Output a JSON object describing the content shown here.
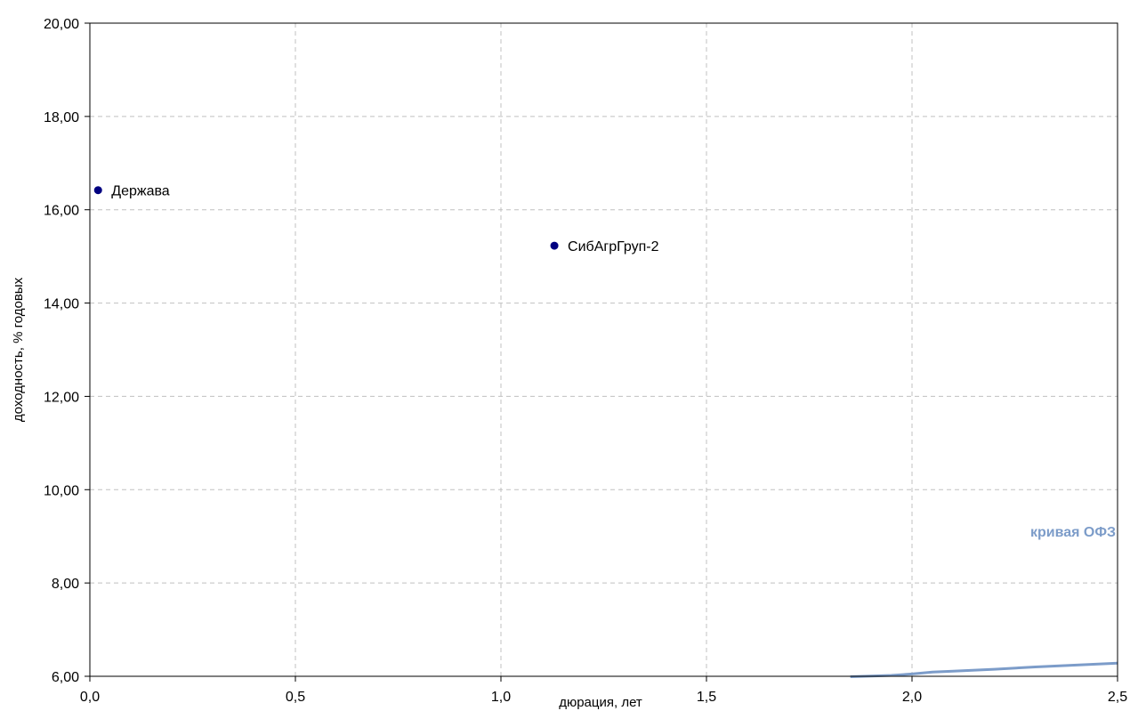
{
  "chart_data": {
    "type": "scatter",
    "xlabel": "дюрация, лет",
    "ylabel": "доходность, % годовых",
    "xlim": [
      0,
      2.5
    ],
    "ylim": [
      6,
      20
    ],
    "x_ticks": [
      "0,0",
      "0,5",
      "1,0",
      "1,5",
      "2,0",
      "2,5"
    ],
    "y_ticks": [
      "6,00",
      "8,00",
      "10,00",
      "12,00",
      "14,00",
      "16,00",
      "18,00",
      "20,00"
    ],
    "grid": true,
    "points": [
      {
        "label": "Держава",
        "x": 0.02,
        "y": 16.42
      },
      {
        "label": "СибАгрГруп-2",
        "x": 1.13,
        "y": 15.23
      }
    ],
    "curve": {
      "label": "кривая ОФЗ",
      "x": [
        1.85,
        1.95,
        2.0,
        2.05,
        2.1,
        2.2,
        2.3,
        2.4,
        2.5
      ],
      "y": [
        5.99,
        6.02,
        6.05,
        6.09,
        6.11,
        6.15,
        6.2,
        6.24,
        6.28
      ]
    },
    "colors": {
      "points": "#000080",
      "curve": "#7c9cc9",
      "grid": "#c0c0c0",
      "axis": "#000000"
    }
  }
}
